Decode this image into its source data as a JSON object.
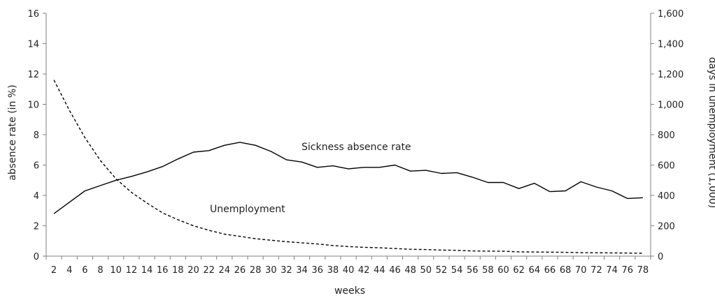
{
  "chart_data": {
    "type": "line",
    "xlabel": "weeks",
    "ylabel_left": "absence rate (in %)",
    "ylabel_right": "days in unemployment (1,000)",
    "x": [
      2,
      4,
      6,
      8,
      10,
      12,
      14,
      16,
      18,
      20,
      22,
      24,
      26,
      28,
      30,
      32,
      34,
      36,
      38,
      40,
      42,
      44,
      46,
      48,
      50,
      52,
      54,
      56,
      58,
      60,
      62,
      64,
      66,
      68,
      70,
      72,
      74,
      76,
      78
    ],
    "x_ticks": [
      "2",
      "4",
      "6",
      "8",
      "10",
      "12",
      "14",
      "16",
      "18",
      "20",
      "22",
      "24",
      "26",
      "28",
      "30",
      "32",
      "34",
      "36",
      "38",
      "40",
      "42",
      "44",
      "46",
      "48",
      "50",
      "52",
      "54",
      "56",
      "58",
      "60",
      "62",
      "64",
      "66",
      "68",
      "70",
      "72",
      "74",
      "76",
      "78"
    ],
    "ylim_left": [
      0,
      16
    ],
    "ylim_right": [
      0,
      1600
    ],
    "y_ticks_left": [
      "0",
      "2",
      "4",
      "6",
      "8",
      "10",
      "12",
      "14",
      "16"
    ],
    "y_ticks_right": [
      "0",
      "200",
      "400",
      "600",
      "800",
      "1,000",
      "1,200",
      "1,400",
      "1,600"
    ],
    "series": [
      {
        "name": "Sickness absence rate",
        "axis": "left",
        "style": "solid",
        "values": [
          2.8,
          3.55,
          4.3,
          4.65,
          5.0,
          5.25,
          5.55,
          5.9,
          6.4,
          6.85,
          6.95,
          7.3,
          7.5,
          7.3,
          6.9,
          6.35,
          6.2,
          5.85,
          5.95,
          5.75,
          5.85,
          5.85,
          6.0,
          5.6,
          5.65,
          5.45,
          5.5,
          5.2,
          4.85,
          4.85,
          4.45,
          4.8,
          4.25,
          4.3,
          4.9,
          4.55,
          4.3,
          3.8,
          3.85
        ]
      },
      {
        "name": "Unemployment",
        "axis": "right",
        "style": "dashed",
        "values": [
          1160,
          960,
          780,
          630,
          510,
          420,
          350,
          285,
          240,
          200,
          170,
          145,
          130,
          115,
          105,
          95,
          88,
          80,
          70,
          63,
          58,
          55,
          50,
          45,
          43,
          40,
          38,
          34,
          33,
          32,
          28,
          27,
          26,
          25,
          23,
          22,
          21,
          20,
          19
        ]
      }
    ],
    "grid": false,
    "legend": "none",
    "colors": {
      "line": "#000000",
      "axis": "#808080"
    }
  }
}
